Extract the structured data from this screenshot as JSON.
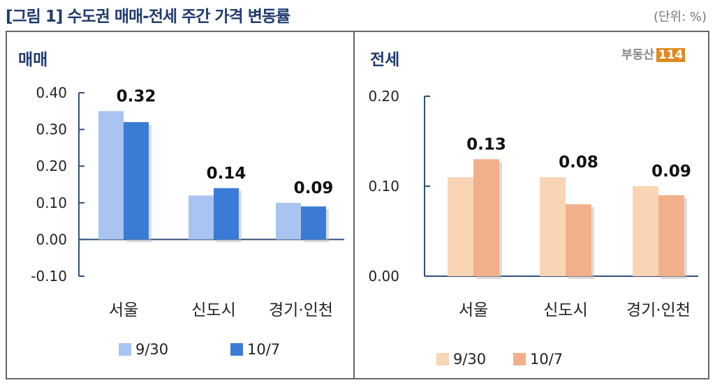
{
  "title": "[그림 1] 수도권 매매-전세 주간 가격 변동률",
  "unit": "(단위: %)",
  "logo": {
    "text": "부동산",
    "badge": "114"
  },
  "chart_data": [
    {
      "type": "bar",
      "title": "매매",
      "categories": [
        "서울",
        "신도시",
        "경기·인천"
      ],
      "series": [
        {
          "name": "9/30",
          "values": [
            0.35,
            0.12,
            0.1
          ],
          "color": "#a9c4f0"
        },
        {
          "name": "10/7",
          "values": [
            0.32,
            0.14,
            0.09
          ],
          "color": "#3a7bd5"
        }
      ],
      "data_labels": [
        "0.32",
        "0.14",
        "0.09"
      ],
      "ylim": [
        -0.1,
        0.4
      ],
      "yticks": [
        "0.40",
        "0.30",
        "0.20",
        "0.10",
        "0.00",
        "-0.10"
      ],
      "legend": "bottom"
    },
    {
      "type": "bar",
      "title": "전세",
      "categories": [
        "서울",
        "신도시",
        "경기·인천"
      ],
      "series": [
        {
          "name": "9/30",
          "values": [
            0.11,
            0.11,
            0.1
          ],
          "color": "#f9d5b5"
        },
        {
          "name": "10/7",
          "values": [
            0.13,
            0.08,
            0.09
          ],
          "color": "#f2b08a"
        }
      ],
      "data_labels": [
        "0.13",
        "0.08",
        "0.09"
      ],
      "ylim": [
        0.0,
        0.2
      ],
      "yticks": [
        "0.20",
        "0.10",
        "0.00"
      ],
      "legend": "bottom"
    }
  ]
}
